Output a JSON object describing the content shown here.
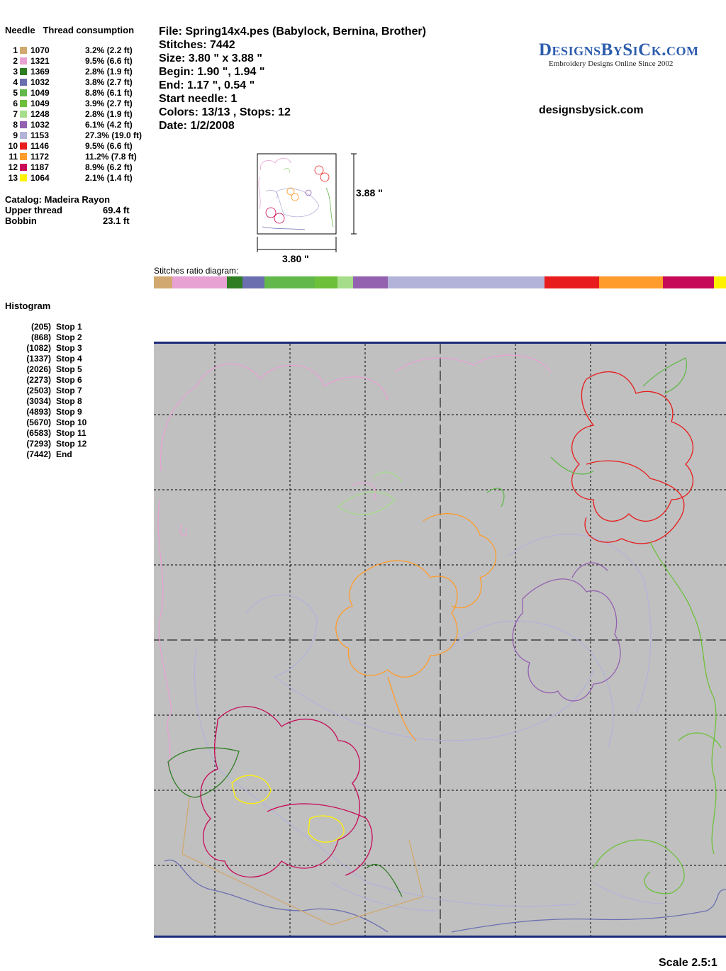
{
  "needle_panel": {
    "header": "Needle   Thread consumption",
    "rows": [
      {
        "needle": "1",
        "code": "1070",
        "consumption": "3.2% (2.2 ft)",
        "color": "#d1a86f"
      },
      {
        "needle": "2",
        "code": "1321",
        "consumption": "9.5% (6.6 ft)",
        "color": "#e7a1d3"
      },
      {
        "needle": "3",
        "code": "1369",
        "consumption": "2.8% (1.9 ft)",
        "color": "#2e7d23"
      },
      {
        "needle": "4",
        "code": "1032",
        "consumption": "3.8% (2.7 ft)",
        "color": "#6b6fb0"
      },
      {
        "needle": "5",
        "code": "1049",
        "consumption": "8.8% (6.1 ft)",
        "color": "#62b84b"
      },
      {
        "needle": "6",
        "code": "1049",
        "consumption": "3.9% (2.7 ft)",
        "color": "#6cc03a"
      },
      {
        "needle": "7",
        "code": "1248",
        "consumption": "2.8% (1.9 ft)",
        "color": "#a6dd8a"
      },
      {
        "needle": "8",
        "code": "1032",
        "consumption": "6.1% (4.2 ft)",
        "color": "#9460b0"
      },
      {
        "needle": "9",
        "code": "1153",
        "consumption": "27.3% (19.0 ft)",
        "color": "#b3b3d9"
      },
      {
        "needle": "10",
        "code": "1146",
        "consumption": "9.5% (6.6 ft)",
        "color": "#e81c1c"
      },
      {
        "needle": "11",
        "code": "1172",
        "consumption": "11.2% (7.8 ft)",
        "color": "#ff9c2b"
      },
      {
        "needle": "12",
        "code": "1187",
        "consumption": "8.9% (6.2 ft)",
        "color": "#c70a57"
      },
      {
        "needle": "13",
        "code": "1064",
        "consumption": "2.1% (1.4 ft)",
        "color": "#fff200"
      }
    ],
    "catalog": "Catalog: Madeira Rayon",
    "upper_thread_label": "Upper thread",
    "upper_thread_value": "69.4 ft",
    "bobbin_label": "Bobbin",
    "bobbin_value": "23.1 ft"
  },
  "file_info": {
    "file": "File: Spring14x4.pes  (Babylock, Bernina, Brother)",
    "stitches": "Stitches: 7442",
    "size": "Size: 3.80 \" x 3.88 \"",
    "begin": "Begin: 1.90 \", 1.94 \"",
    "end": "End: 1.17 \", 0.54 \"",
    "start_needle": "Start needle: 1",
    "colors": "Colors: 13/13 , Stops: 12",
    "date": "Date: 1/2/2008"
  },
  "brand": {
    "logo_text": "DesignsBySiCk.com",
    "tagline": "Embroidery Designs Online Since 2002",
    "website": "designsbysick.com"
  },
  "preview": {
    "height_label": "3.88 \"",
    "width_label": "3.80 \""
  },
  "ratio_diagram": {
    "label": "Stitches ratio diagram:"
  },
  "histogram": {
    "title": "Histogram",
    "rows": [
      {
        "count": "(205)",
        "label": "Stop 1"
      },
      {
        "count": "(868)",
        "label": "Stop 2"
      },
      {
        "count": "(1082)",
        "label": "Stop 3"
      },
      {
        "count": "(1337)",
        "label": "Stop 4"
      },
      {
        "count": "(2026)",
        "label": "Stop 5"
      },
      {
        "count": "(2273)",
        "label": "Stop 6"
      },
      {
        "count": "(2503)",
        "label": "Stop 7"
      },
      {
        "count": "(3034)",
        "label": "Stop 8"
      },
      {
        "count": "(4893)",
        "label": "Stop 9"
      },
      {
        "count": "(5670)",
        "label": "Stop 10"
      },
      {
        "count": "(6583)",
        "label": "Stop 11"
      },
      {
        "count": "(7293)",
        "label": "Stop 12"
      },
      {
        "count": "(7442)",
        "label": "End"
      }
    ]
  },
  "scale": "Scale 2.5:1"
}
